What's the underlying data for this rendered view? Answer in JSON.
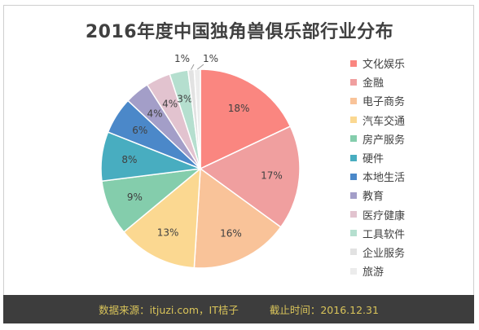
{
  "chart_data": {
    "type": "pie",
    "title": "2016年度中国独角兽俱乐部行业分布",
    "legend_position": "right",
    "categories": [
      "文化娱乐",
      "金融",
      "电子商务",
      "汽车交通",
      "房产服务",
      "硬件",
      "本地生活",
      "教育",
      "医疗健康",
      "工具软件",
      "企业服务",
      "旅游"
    ],
    "values": [
      18,
      17,
      16,
      13,
      9,
      8,
      6,
      4,
      4,
      3,
      1,
      1
    ],
    "value_labels": [
      "18%",
      "17%",
      "16%",
      "13%",
      "9%",
      "8%",
      "6%",
      "4%",
      "4%",
      "3%",
      "1%",
      "1%"
    ],
    "colors": [
      "#fa8680",
      "#f09f9f",
      "#f9c399",
      "#fbd891",
      "#84cdac",
      "#48adc0",
      "#4b88c9",
      "#a39ec8",
      "#e2c3cf",
      "#b5dfcf",
      "#e2e2e2",
      "#ececec"
    ]
  },
  "footer": {
    "source": "数据来源：itjuzi.com，IT桔子",
    "deadline": "截止时间：2016.12.31"
  }
}
